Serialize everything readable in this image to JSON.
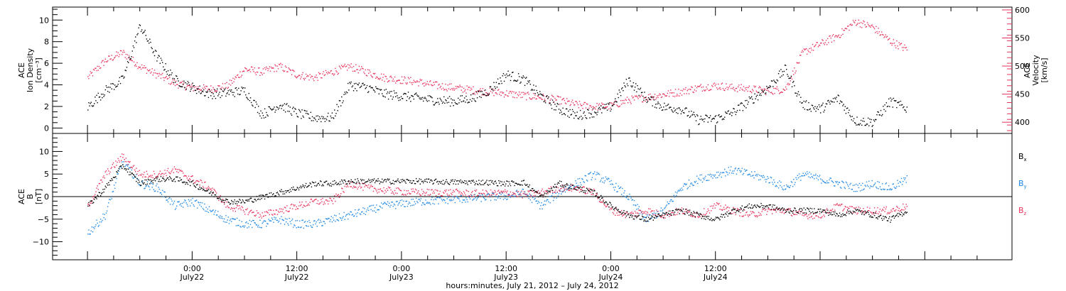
{
  "chart_data": [
    {
      "type": "scatter",
      "panel": "ion-density-velocity",
      "ylabel": [
        "ACE",
        "Ion Density",
        "[cm⁻³]"
      ],
      "y2label": [
        "ACE",
        "Velocity",
        "[km/s]"
      ],
      "ylim": [
        -0.5,
        11.2
      ],
      "y2lim": [
        380,
        605
      ],
      "yticks": [
        0,
        2,
        4,
        6,
        8,
        10
      ],
      "yticklabels": [
        "0",
        "2",
        "4",
        "6",
        "8",
        "10"
      ],
      "y2ticks": [
        400,
        450,
        500,
        550,
        600
      ],
      "y2ticklabels": [
        "400",
        "450",
        "500",
        "550",
        "600"
      ],
      "series": [
        {
          "axis": "left",
          "color": "#000000",
          "x": [
            0,
            2,
            4,
            6,
            8,
            10,
            12,
            14,
            16,
            18,
            20,
            22,
            24,
            26,
            28,
            30,
            32,
            34,
            36,
            38,
            40,
            42,
            44,
            46,
            48,
            50,
            52,
            54,
            56,
            58,
            60,
            62,
            64,
            66,
            68,
            70,
            72,
            74,
            76,
            78,
            80,
            82,
            84,
            86,
            88,
            90,
            92,
            94
          ],
          "values": [
            2.0,
            3.5,
            4.5,
            9.5,
            6.5,
            4.5,
            3.8,
            3.2,
            3.3,
            3.5,
            1.3,
            2.2,
            1.4,
            1.0,
            1.0,
            4.0,
            3.8,
            3.2,
            3.0,
            2.8,
            2.6,
            2.5,
            2.8,
            3.5,
            5.0,
            4.5,
            3.0,
            1.8,
            1.2,
            1.5,
            2.0,
            4.5,
            2.8,
            2.0,
            1.8,
            0.8,
            0.9,
            1.5,
            2.6,
            3.8,
            5.5,
            2.2,
            1.8,
            2.8,
            0.7,
            0.6,
            2.5,
            1.8
          ]
        },
        {
          "axis": "right",
          "color": "#e8325c",
          "x": [
            0,
            2,
            4,
            6,
            8,
            10,
            12,
            14,
            16,
            18,
            20,
            22,
            24,
            26,
            28,
            30,
            32,
            34,
            36,
            38,
            40,
            42,
            44,
            46,
            48,
            50,
            52,
            54,
            56,
            58,
            60,
            62,
            64,
            66,
            68,
            70,
            72,
            74,
            76,
            78,
            80,
            82,
            84,
            86,
            88,
            90,
            92,
            94
          ],
          "values": [
            480,
            510,
            525,
            500,
            485,
            470,
            462,
            460,
            465,
            495,
            490,
            500,
            485,
            480,
            490,
            500,
            490,
            480,
            476,
            472,
            466,
            462,
            458,
            455,
            452,
            448,
            445,
            440,
            432,
            428,
            430,
            440,
            445,
            450,
            455,
            462,
            466,
            462,
            460,
            456,
            460,
            525,
            540,
            555,
            580,
            570,
            545,
            530
          ]
        }
      ]
    },
    {
      "type": "scatter",
      "panel": "magnetic-field",
      "ylabel": [
        "ACE",
        "B",
        "[nT]"
      ],
      "ylim": [
        -14,
        14
      ],
      "yticks": [
        -10,
        -5,
        0,
        5,
        10
      ],
      "yticklabels": [
        "−10",
        "−5",
        "0",
        "5",
        "10"
      ],
      "legend": "right",
      "series": [
        {
          "name": "B",
          "sub": "x",
          "color": "#000000",
          "x": [
            0,
            2,
            4,
            6,
            8,
            10,
            12,
            14,
            16,
            18,
            20,
            22,
            24,
            26,
            28,
            30,
            32,
            34,
            36,
            38,
            40,
            42,
            44,
            46,
            48,
            50,
            52,
            54,
            56,
            58,
            60,
            62,
            64,
            66,
            68,
            70,
            72,
            74,
            76,
            78,
            80,
            82,
            84,
            86,
            88,
            90,
            92,
            94
          ],
          "values": [
            -2,
            2,
            7,
            3,
            4,
            4,
            3,
            1,
            -1,
            -1,
            0,
            1,
            2,
            3,
            3,
            3.5,
            3.5,
            3.5,
            3.5,
            3.5,
            3.4,
            3.3,
            3.3,
            3.2,
            3.0,
            3.2,
            0,
            3,
            2,
            1,
            -2,
            -4,
            -5,
            -4,
            -3,
            -4,
            -5,
            -3,
            -2,
            -2,
            -3,
            -3,
            -3,
            -4,
            -3,
            -4,
            -5,
            -3
          ]
        },
        {
          "name": "B",
          "sub": "y",
          "color": "#1e88e5",
          "x": [
            0,
            2,
            4,
            6,
            8,
            10,
            12,
            14,
            16,
            18,
            20,
            22,
            24,
            26,
            28,
            30,
            32,
            34,
            36,
            38,
            40,
            42,
            44,
            46,
            48,
            50,
            52,
            54,
            56,
            58,
            60,
            62,
            64,
            66,
            68,
            70,
            72,
            74,
            76,
            78,
            80,
            82,
            84,
            86,
            88,
            90,
            92,
            94
          ],
          "values": [
            -8,
            -4,
            8,
            3,
            2,
            -2,
            -1,
            -3,
            -5,
            -6,
            -6,
            -5,
            -6,
            -6,
            -5,
            -4,
            -3,
            -2,
            -1.5,
            -1,
            -0.8,
            -0.5,
            -0.3,
            0,
            0.2,
            1,
            -2,
            1,
            3,
            5,
            3,
            0,
            -5,
            -3,
            2,
            4,
            5,
            6,
            5,
            4,
            2,
            5,
            4,
            3,
            2,
            3,
            2,
            4
          ]
        },
        {
          "name": "B",
          "sub": "z",
          "color": "#e8325c",
          "x": [
            0,
            2,
            4,
            6,
            8,
            10,
            12,
            14,
            16,
            18,
            20,
            22,
            24,
            26,
            28,
            30,
            32,
            34,
            36,
            38,
            40,
            42,
            44,
            46,
            48,
            50,
            52,
            54,
            56,
            58,
            60,
            62,
            64,
            66,
            68,
            70,
            72,
            74,
            76,
            78,
            80,
            82,
            84,
            86,
            88,
            90,
            92,
            94
          ],
          "values": [
            -2,
            5,
            9,
            5,
            5,
            6,
            4,
            2,
            -2,
            -3,
            -4,
            -3,
            -2,
            -1,
            -1,
            3,
            2,
            1.5,
            1.2,
            1.0,
            1.0,
            1.0,
            0.8,
            0.8,
            1.0,
            0.5,
            1,
            2,
            2,
            1,
            -3,
            -4,
            -3,
            -4,
            -3,
            -4,
            -2,
            -3,
            -4,
            -3,
            -3,
            -4,
            -4,
            -2,
            -3,
            -3,
            -3,
            -2
          ]
        }
      ]
    }
  ],
  "xaxis": {
    "xlim": [
      -4,
      106
    ],
    "ticks": [
      {
        "x": 12,
        "time": "0:00",
        "date": "July22"
      },
      {
        "x": 24,
        "time": "12:00",
        "date": "July22"
      },
      {
        "x": 36,
        "time": "0:00",
        "date": "July23"
      },
      {
        "x": 48,
        "time": "12:00",
        "date": "July23"
      },
      {
        "x": 60,
        "time": "0:00",
        "date": "July24"
      },
      {
        "x": 72,
        "time": "12:00",
        "date": "July24"
      }
    ],
    "label": "hours:minutes, July 21, 2012 – July 24, 2012"
  }
}
